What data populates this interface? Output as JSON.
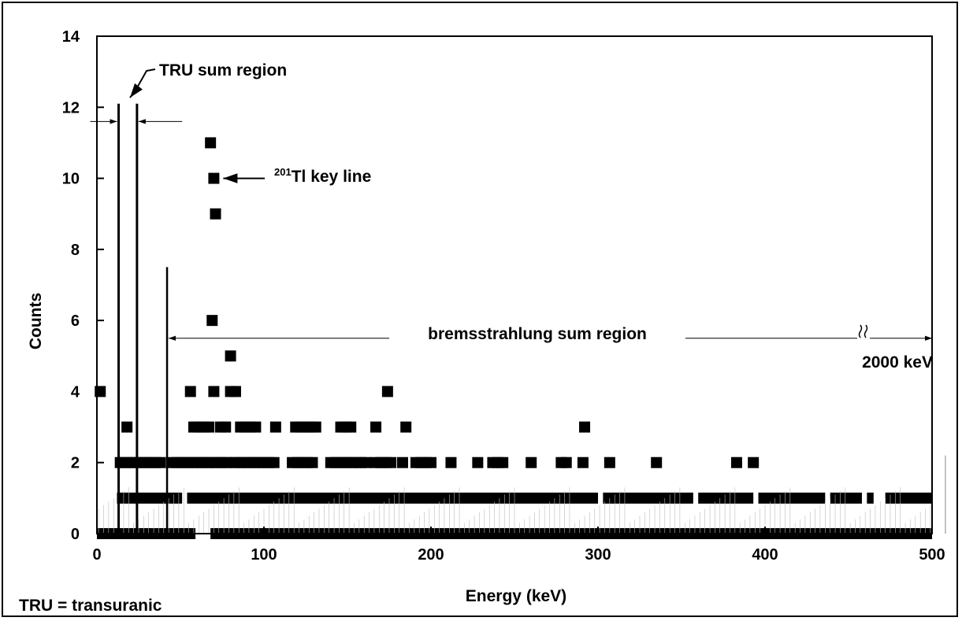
{
  "chart_data": {
    "type": "scatter",
    "xlabel": "Energy (keV)",
    "ylabel": "Counts",
    "xlim": [
      0,
      500
    ],
    "ylim": [
      0,
      14
    ],
    "xticks": [
      0,
      100,
      200,
      300,
      400,
      500
    ],
    "yticks": [
      0,
      2,
      4,
      6,
      8,
      10,
      12,
      14
    ],
    "grid": false,
    "footnote": "TRU = transuranic",
    "annotations": {
      "tru_region": "TRU sum region",
      "tru_region_bounds_keV": [
        13,
        24
      ],
      "key_line_super": "201",
      "key_line_rest": "Tl key line",
      "key_line_energy_keV": 70,
      "threshold_energy_keV": 42,
      "brems_region": "bremsstrahlung sum region",
      "brems_end": "2000 keV"
    },
    "series": [
      {
        "points": [
          [
            2,
            4
          ],
          [
            18,
            3
          ],
          [
            56,
            4
          ],
          [
            58,
            3
          ],
          [
            61,
            3
          ],
          [
            64,
            3
          ],
          [
            67,
            3
          ],
          [
            70,
            4
          ],
          [
            74,
            3
          ],
          [
            77,
            3
          ],
          [
            80,
            4
          ],
          [
            83,
            4
          ],
          [
            80,
            5
          ],
          [
            86,
            3
          ],
          [
            89,
            3
          ],
          [
            92,
            3
          ],
          [
            95,
            3
          ],
          [
            107,
            3
          ],
          [
            119,
            3
          ],
          [
            122,
            3
          ],
          [
            125,
            3
          ],
          [
            128,
            3
          ],
          [
            131,
            3
          ],
          [
            146,
            3
          ],
          [
            149,
            3
          ],
          [
            152,
            3
          ],
          [
            167,
            3
          ],
          [
            174,
            4
          ],
          [
            185,
            3
          ],
          [
            292,
            3
          ],
          [
            68,
            11
          ],
          [
            70,
            10
          ],
          [
            71,
            9
          ],
          [
            69,
            6
          ],
          [
            14,
            2
          ],
          [
            17,
            2
          ],
          [
            20,
            2
          ],
          [
            23,
            2
          ],
          [
            26,
            2
          ],
          [
            29,
            2
          ],
          [
            32,
            2
          ],
          [
            35,
            2
          ],
          [
            38,
            2
          ],
          [
            45,
            2
          ],
          [
            48,
            2
          ],
          [
            51,
            2
          ],
          [
            54,
            2
          ],
          [
            57,
            2
          ],
          [
            60,
            2
          ],
          [
            63,
            2
          ],
          [
            66,
            2
          ],
          [
            69,
            2
          ],
          [
            72,
            2
          ],
          [
            75,
            2
          ],
          [
            78,
            2
          ],
          [
            82,
            2
          ],
          [
            85,
            2
          ],
          [
            88,
            2
          ],
          [
            91,
            2
          ],
          [
            94,
            2
          ],
          [
            97,
            2
          ],
          [
            100,
            2
          ],
          [
            103,
            2
          ],
          [
            106,
            2
          ],
          [
            117,
            2
          ],
          [
            120,
            2
          ],
          [
            123,
            2
          ],
          [
            126,
            2
          ],
          [
            129,
            2
          ],
          [
            140,
            2
          ],
          [
            143,
            2
          ],
          [
            146,
            2
          ],
          [
            149,
            2
          ],
          [
            152,
            2
          ],
          [
            155,
            2
          ],
          [
            158,
            2
          ],
          [
            161,
            2
          ],
          [
            167,
            2
          ],
          [
            170,
            2
          ],
          [
            173,
            2
          ],
          [
            176,
            2
          ],
          [
            183,
            2
          ],
          [
            191,
            2
          ],
          [
            194,
            2
          ],
          [
            197,
            2
          ],
          [
            200,
            2
          ],
          [
            212,
            2
          ],
          [
            228,
            2
          ],
          [
            237,
            2
          ],
          [
            240,
            2
          ],
          [
            243,
            2
          ],
          [
            260,
            2
          ],
          [
            278,
            2
          ],
          [
            281,
            2
          ],
          [
            291,
            2
          ],
          [
            307,
            2
          ],
          [
            335,
            2
          ],
          [
            383,
            2
          ],
          [
            393,
            2
          ]
        ]
      }
    ]
  }
}
